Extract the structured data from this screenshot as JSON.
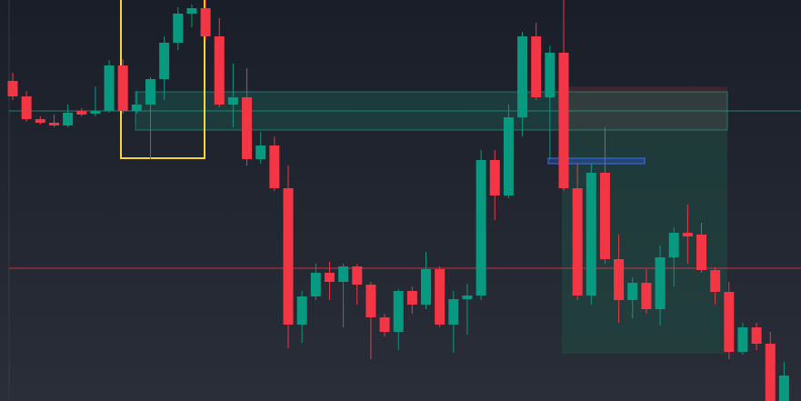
{
  "chart_data": {
    "type": "candlestick",
    "categories": [
      null,
      null,
      null,
      null,
      null,
      null,
      null,
      null,
      null,
      null,
      null,
      null,
      null,
      null,
      null,
      null,
      null,
      null,
      null,
      null,
      null,
      null,
      null,
      null,
      null,
      null,
      null,
      null,
      null,
      null,
      null,
      null,
      null,
      null,
      null,
      null,
      null,
      null,
      null,
      null,
      null,
      null,
      null,
      null,
      null,
      null,
      null,
      null,
      null,
      null,
      null,
      null,
      null,
      null,
      null,
      null,
      null
    ],
    "open": [
      352,
      335,
      310,
      306,
      303,
      319,
      316,
      319,
      369,
      319,
      326,
      354,
      394,
      426,
      432,
      401,
      326,
      334,
      266,
      281,
      234,
      84,
      115,
      141,
      131,
      148,
      128,
      92,
      76,
      121,
      106,
      145,
      84,
      112,
      116,
      265,
      226,
      312,
      401,
      334,
      383,
      234,
      116,
      251,
      156,
      111,
      130,
      101,
      158,
      185,
      183,
      144,
      120,
      54,
      81,
      63,
      0
    ],
    "high": [
      361,
      341,
      313,
      315,
      326,
      322,
      346,
      375,
      376,
      341,
      356,
      401,
      433,
      436,
      441,
      421,
      371,
      366,
      296,
      291,
      259,
      121,
      151,
      153,
      151,
      151,
      131,
      96,
      123,
      126,
      164,
      148,
      121,
      129,
      276,
      276,
      326,
      406,
      416,
      391,
      441,
      261,
      261,
      301,
      183,
      136,
      145,
      171,
      191,
      216,
      196,
      147,
      131,
      86,
      86,
      76,
      43
    ],
    "low": [
      331,
      307,
      304,
      301,
      301,
      313,
      313,
      317,
      316,
      316,
      266,
      331,
      386,
      411,
      396,
      323,
      301,
      259,
      261,
      231,
      58,
      64,
      111,
      111,
      81,
      106,
      46,
      71,
      56,
      96,
      101,
      81,
      53,
      73,
      111,
      199,
      223,
      291,
      331,
      266,
      231,
      111,
      106,
      151,
      86,
      91,
      96,
      83,
      126,
      151,
      141,
      106,
      46,
      51,
      56,
      0,
      0
    ],
    "close": [
      335,
      310,
      306,
      303,
      317,
      315,
      319,
      369,
      319,
      326,
      354,
      394,
      426,
      432,
      401,
      326,
      334,
      266,
      281,
      234,
      84,
      115,
      141,
      131,
      148,
      128,
      92,
      76,
      121,
      106,
      145,
      84,
      112,
      116,
      265,
      226,
      312,
      401,
      334,
      383,
      234,
      116,
      251,
      156,
      111,
      130,
      101,
      158,
      185,
      181,
      144,
      120,
      54,
      81,
      63,
      0,
      28
    ],
    "up_color": "#089981",
    "down_color": "#f23645",
    "ylim": [
      0,
      441
    ]
  }
}
